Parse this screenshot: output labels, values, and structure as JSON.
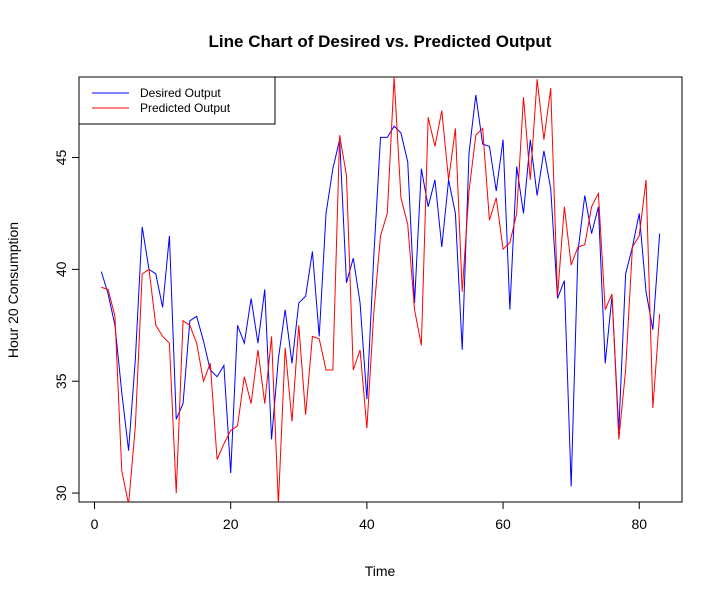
{
  "chart_data": {
    "type": "line",
    "title": "Line Chart of Desired vs. Predicted Output",
    "xlabel": "Time",
    "ylabel": "Hour 20 Consumption",
    "x": [
      1,
      2,
      3,
      4,
      5,
      6,
      7,
      8,
      9,
      10,
      11,
      12,
      13,
      14,
      15,
      16,
      17,
      18,
      19,
      20,
      21,
      22,
      23,
      24,
      25,
      26,
      27,
      28,
      29,
      30,
      31,
      32,
      33,
      34,
      35,
      36,
      37,
      38,
      39,
      40,
      41,
      42,
      43,
      44,
      45,
      46,
      47,
      48,
      49,
      50,
      51,
      52,
      53,
      54,
      55,
      56,
      57,
      58,
      59,
      60,
      61,
      62,
      63,
      64,
      65,
      66,
      67,
      68,
      69,
      70,
      71,
      72,
      73,
      74,
      75,
      76,
      77,
      78,
      79,
      80,
      81,
      82,
      83
    ],
    "series": [
      {
        "name": "Desired Output",
        "color": "#0000ff",
        "values": [
          39.9,
          38.9,
          37.5,
          34.5,
          31.9,
          36.0,
          41.9,
          40.0,
          39.8,
          38.3,
          41.5,
          33.3,
          34.0,
          37.7,
          37.9,
          36.8,
          35.5,
          35.2,
          35.7,
          30.9,
          37.5,
          36.7,
          38.7,
          36.7,
          39.1,
          32.4,
          36.0,
          38.2,
          35.8,
          38.5,
          38.8,
          40.8,
          37.0,
          42.5,
          44.5,
          45.8,
          39.4,
          40.5,
          38.5,
          34.2,
          40.5,
          45.9,
          45.9,
          46.4,
          46.1,
          44.8,
          38.5,
          44.5,
          42.8,
          44.0,
          41.0,
          44.0,
          42.5,
          36.4,
          45.2,
          47.8,
          45.6,
          45.5,
          43.5,
          45.8,
          38.2,
          44.6,
          42.5,
          45.8,
          43.3,
          45.3,
          43.6,
          38.7,
          39.5,
          30.3,
          40.8,
          43.3,
          41.6,
          42.8,
          35.8,
          38.8,
          32.8,
          39.8,
          41.0,
          42.5,
          39.0,
          37.3,
          41.6
        ]
      },
      {
        "name": "Predicted Output",
        "color": "#ff0000",
        "values": [
          39.2,
          39.1,
          37.9,
          31.0,
          29.5,
          33.0,
          39.8,
          40.0,
          37.5,
          37.0,
          36.7,
          30.0,
          37.7,
          37.5,
          36.7,
          35.0,
          35.8,
          31.5,
          32.2,
          32.8,
          33.0,
          35.2,
          34.0,
          36.4,
          34.0,
          37.0,
          29.5,
          36.5,
          33.2,
          37.5,
          33.5,
          37.0,
          36.9,
          35.5,
          35.5,
          46.0,
          44.2,
          35.5,
          36.4,
          32.9,
          38.0,
          41.5,
          42.5,
          48.6,
          43.2,
          42.0,
          38.2,
          36.6,
          46.8,
          45.5,
          47.1,
          44.0,
          46.3,
          39.0,
          43.5,
          46.0,
          46.3,
          42.2,
          43.2,
          40.9,
          41.2,
          42.5,
          47.7,
          44.0,
          48.5,
          45.8,
          48.1,
          38.8,
          42.8,
          40.2,
          41.0,
          41.1,
          42.8,
          43.4,
          38.2,
          38.9,
          32.4,
          35.5,
          41.0,
          41.5,
          44.0,
          33.8,
          38.0
        ]
      }
    ],
    "xlim": [
      -2.28,
      86.28
    ],
    "xticks": [
      0,
      20,
      40,
      60,
      80
    ],
    "ylim": [
      29.6,
      48.6
    ],
    "yticks": [
      30,
      35,
      40,
      45
    ],
    "legend": "top-left"
  }
}
